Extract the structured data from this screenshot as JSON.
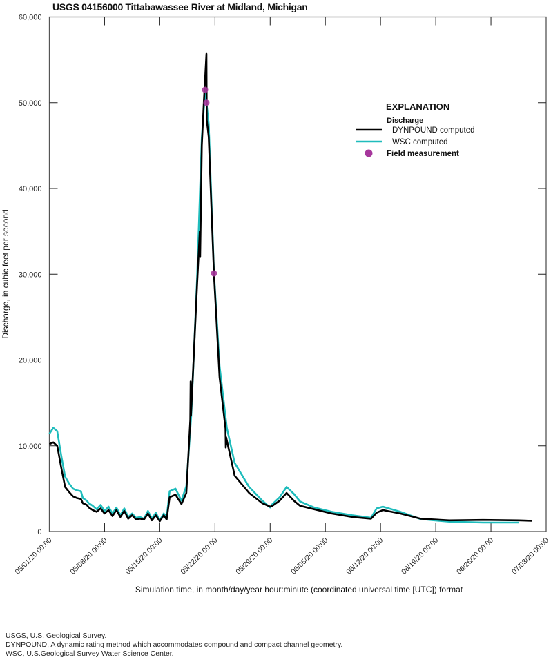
{
  "chart_data": {
    "type": "line",
    "title": "USGS 04156000 Tittabawassee River at Midland, Michigan",
    "xlabel": "Simulation time, in month/day/year hour:minute (coordinated universal time [UTC]) format",
    "ylabel": "Discharge, in cubic feet per second",
    "ylim": [
      0,
      60000
    ],
    "xlim": [
      "05/01/20 00:00",
      "07/03/20 00:00"
    ],
    "yticks": [
      "0",
      "10,000",
      "20,000",
      "30,000",
      "40,000",
      "50,000",
      "60,000"
    ],
    "ytick_values": [
      0,
      10000,
      20000,
      30000,
      40000,
      50000,
      60000
    ],
    "xticks": [
      "05/01/20 00:00",
      "05/08/20 00:00",
      "05/15/20 00:00",
      "05/22/20 00:00",
      "05/29/20 00:00",
      "06/05/20 00:00",
      "06/12/20 00:00",
      "06/19/20 00:00",
      "06/26/20 00:00",
      "07/03/20 00:00"
    ],
    "grid": false,
    "legend": {
      "placement": "top-right",
      "heading": "EXPLANATION",
      "subheading": "Discharge"
    },
    "series": [
      {
        "name": "WSC computed",
        "color": "#1fbcbc",
        "points": [
          [
            "05/01/20 00:00",
            11400
          ],
          [
            "05/01/20 12:00",
            12100
          ],
          [
            "05/02/20 00:00",
            11700
          ],
          [
            "05/02/20 12:00",
            8900
          ],
          [
            "05/03/20 00:00",
            6400
          ],
          [
            "05/03/20 12:00",
            5600
          ],
          [
            "05/04/20 00:00",
            5000
          ],
          [
            "05/04/20 12:00",
            4800
          ],
          [
            "05/05/20 00:00",
            4700
          ],
          [
            "05/05/20 06:00",
            3900
          ],
          [
            "05/05/20 18:00",
            3600
          ],
          [
            "05/06/20 00:00",
            3300
          ],
          [
            "05/06/20 12:00",
            3000
          ],
          [
            "05/07/20 00:00",
            2600
          ],
          [
            "05/07/20 12:00",
            3100
          ],
          [
            "05/08/20 00:00",
            2400
          ],
          [
            "05/08/20 12:00",
            2900
          ],
          [
            "05/09/20 00:00",
            2100
          ],
          [
            "05/09/20 12:00",
            2800
          ],
          [
            "05/10/20 00:00",
            1900
          ],
          [
            "05/10/20 12:00",
            2700
          ],
          [
            "05/11/20 00:00",
            1700
          ],
          [
            "05/11/20 12:00",
            2100
          ],
          [
            "05/12/20 00:00",
            1600
          ],
          [
            "05/12/20 12:00",
            1700
          ],
          [
            "05/13/20 00:00",
            1500
          ],
          [
            "05/13/20 12:00",
            2400
          ],
          [
            "05/14/20 00:00",
            1500
          ],
          [
            "05/14/20 12:00",
            2200
          ],
          [
            "05/15/20 00:00",
            1300
          ],
          [
            "05/15/20 12:00",
            2100
          ],
          [
            "05/15/20 21:00",
            1700
          ],
          [
            "05/16/20 06:00",
            4700
          ],
          [
            "05/17/20 00:00",
            5000
          ],
          [
            "05/17/20 18:00",
            3600
          ],
          [
            "05/18/20 09:00",
            5300
          ],
          [
            "05/19/20 00:00",
            13700
          ],
          [
            "05/19/20 18:00",
            29800
          ],
          [
            "05/20/20 08:00",
            45900
          ],
          [
            "05/20/20 18:00",
            51500
          ],
          [
            "05/21/20 05:00",
            47500
          ],
          [
            "05/21/20 21:00",
            30200
          ],
          [
            "05/22/20 14:00",
            19300
          ],
          [
            "05/23/20 12:00",
            12100
          ],
          [
            "05/24/20 12:00",
            8000
          ],
          [
            "05/26/20 08:00",
            5200
          ],
          [
            "05/28/20 00:00",
            3600
          ],
          [
            "05/29/20 00:00",
            2800
          ],
          [
            "05/29/20 07:00",
            3200
          ],
          [
            "05/30/20 05:00",
            4000
          ],
          [
            "05/31/20 02:00",
            5200
          ],
          [
            "06/01/20 00:00",
            4400
          ],
          [
            "06/01/20 19:00",
            3500
          ],
          [
            "06/03/20 14:00",
            2800
          ],
          [
            "06/05/20 19:00",
            2300
          ],
          [
            "06/08/20 10:00",
            1900
          ],
          [
            "06/10/20 19:00",
            1600
          ],
          [
            "06/11/20 12:00",
            2700
          ],
          [
            "06/12/20 07:00",
            2900
          ],
          [
            "06/14/20 12:00",
            2300
          ],
          [
            "06/17/20 02:00",
            1450
          ],
          [
            "06/20/20 17:00",
            1150
          ],
          [
            "06/25/20 00:00",
            1050
          ],
          [
            "06/29/20 12:00",
            1050
          ]
        ]
      },
      {
        "name": "DYNPOUND computed",
        "color": "#000000",
        "points": [
          [
            "05/01/20 00:00",
            10200
          ],
          [
            "05/01/20 12:00",
            10400
          ],
          [
            "05/02/20 00:00",
            10000
          ],
          [
            "05/02/20 12:00",
            7500
          ],
          [
            "05/03/20 00:00",
            5200
          ],
          [
            "05/03/20 12:00",
            4600
          ],
          [
            "05/04/20 00:00",
            4100
          ],
          [
            "05/04/20 12:00",
            3900
          ],
          [
            "05/05/20 00:00",
            3800
          ],
          [
            "05/05/20 06:00",
            3300
          ],
          [
            "05/05/20 18:00",
            3100
          ],
          [
            "05/06/20 00:00",
            2800
          ],
          [
            "05/06/20 12:00",
            2500
          ],
          [
            "05/07/20 00:00",
            2300
          ],
          [
            "05/07/20 12:00",
            2700
          ],
          [
            "05/08/20 00:00",
            2100
          ],
          [
            "05/08/20 12:00",
            2500
          ],
          [
            "05/09/20 00:00",
            1800
          ],
          [
            "05/09/20 12:00",
            2500
          ],
          [
            "05/10/20 00:00",
            1700
          ],
          [
            "05/10/20 12:00",
            2400
          ],
          [
            "05/11/20 00:00",
            1500
          ],
          [
            "05/11/20 12:00",
            1900
          ],
          [
            "05/12/20 00:00",
            1400
          ],
          [
            "05/12/20 12:00",
            1500
          ],
          [
            "05/13/20 00:00",
            1400
          ],
          [
            "05/13/20 12:00",
            2100
          ],
          [
            "05/14/20 00:00",
            1300
          ],
          [
            "05/14/20 12:00",
            1900
          ],
          [
            "05/15/20 00:00",
            1200
          ],
          [
            "05/15/20 12:00",
            1900
          ],
          [
            "05/15/20 21:00",
            1400
          ],
          [
            "05/16/20 06:00",
            4000
          ],
          [
            "05/17/20 00:00",
            4300
          ],
          [
            "05/17/20 18:00",
            3200
          ],
          [
            "05/18/20 09:00",
            4500
          ],
          [
            "05/18/20 21:00",
            13000
          ],
          [
            "05/18/20 22:00",
            17500
          ],
          [
            "05/18/20 23:00",
            13500
          ],
          [
            "05/19/20 18:00",
            29000
          ],
          [
            "05/20/20 02:00",
            35000
          ],
          [
            "05/20/20 03:00",
            32000
          ],
          [
            "05/20/20 08:00",
            45000
          ],
          [
            "05/20/20 14:00",
            50000
          ],
          [
            "05/20/20 22:00",
            55700
          ],
          [
            "05/20/20 23:00",
            48000
          ],
          [
            "05/21/20 05:00",
            46000
          ],
          [
            "05/21/20 21:00",
            30000
          ],
          [
            "05/22/20 14:00",
            18000
          ],
          [
            "05/23/20 08:00",
            12000
          ],
          [
            "05/23/20 09:00",
            9800
          ],
          [
            "05/23/20 10:00",
            11000
          ],
          [
            "05/24/20 12:00",
            6500
          ],
          [
            "05/26/20 08:00",
            4500
          ],
          [
            "05/28/20 00:00",
            3300
          ],
          [
            "05/29/20 00:00",
            2900
          ],
          [
            "05/29/20 07:00",
            3000
          ],
          [
            "05/30/20 05:00",
            3600
          ],
          [
            "05/31/20 02:00",
            4500
          ],
          [
            "06/01/20 00:00",
            3600
          ],
          [
            "06/01/20 19:00",
            3000
          ],
          [
            "06/03/20 14:00",
            2600
          ],
          [
            "06/05/20 19:00",
            2100
          ],
          [
            "06/08/20 10:00",
            1700
          ],
          [
            "06/10/20 19:00",
            1500
          ],
          [
            "06/11/20 12:00",
            2200
          ],
          [
            "06/12/20 07:00",
            2500
          ],
          [
            "06/14/20 12:00",
            2100
          ],
          [
            "06/17/20 02:00",
            1500
          ],
          [
            "06/20/20 17:00",
            1300
          ],
          [
            "06/25/20 00:00",
            1350
          ],
          [
            "06/29/20 12:00",
            1300
          ],
          [
            "07/01/20 05:00",
            1250
          ]
        ]
      },
      {
        "name": "Field measurement",
        "type": "scatter",
        "color": "#a6379c",
        "points": [
          [
            "05/20/20 18:00",
            51500
          ],
          [
            "05/20/20 22:00",
            50000
          ],
          [
            "05/21/20 21:00",
            30100
          ]
        ]
      }
    ]
  },
  "notes": [
    "USGS, U.S. Geological Survey.",
    "DYNPOUND, A dynamic rating method which accommodates compound and compact channel geometry.",
    "WSC, U.S.Geological Survey Water Science Center."
  ]
}
